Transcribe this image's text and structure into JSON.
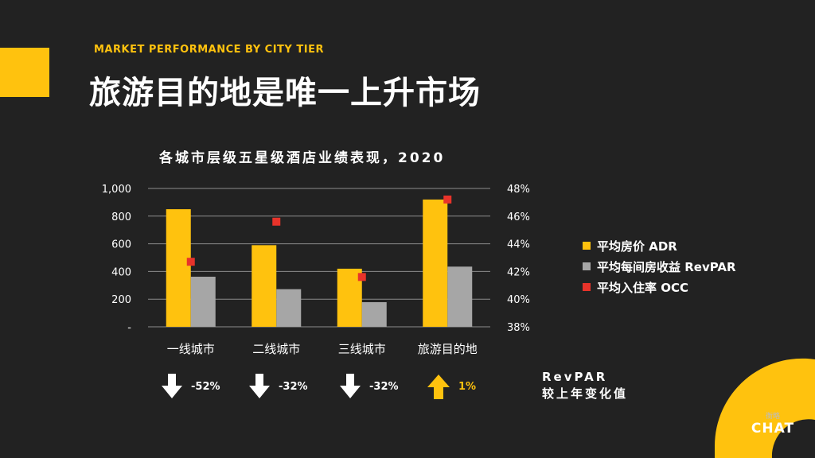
{
  "header": {
    "kicker": "MARKET PERFORMANCE BY CITY TIER",
    "title": "旅游目的地是唯一上升市场"
  },
  "chart_data": {
    "type": "bar",
    "title": "各城市层级五星级酒店业绩表现，2020",
    "categories": [
      "一线城市",
      "二线城市",
      "三线城市",
      "旅游目的地"
    ],
    "series": [
      {
        "name": "平均房价 ADR",
        "kind": "bar",
        "axis": "left",
        "color": "#FFC20E",
        "values": [
          850,
          590,
          420,
          920
        ]
      },
      {
        "name": "平均每间房收益 RevPAR",
        "kind": "bar",
        "axis": "left",
        "color": "#A6A6A6",
        "values": [
          362,
          272,
          178,
          435
        ]
      },
      {
        "name": "平均入住率 OCC",
        "kind": "marker",
        "axis": "right",
        "color": "#E8332A",
        "values": [
          42.7,
          45.6,
          41.6,
          47.2
        ]
      }
    ],
    "left_axis": {
      "min": 0,
      "max": 1000,
      "ticks": [
        "-",
        "200",
        "400",
        "600",
        "800",
        "1,000"
      ]
    },
    "right_axis": {
      "min": 38,
      "max": 48,
      "ticks": [
        "38%",
        "40%",
        "42%",
        "44%",
        "46%",
        "48%"
      ]
    },
    "grid": true,
    "legend_position": "right"
  },
  "revpar_change": {
    "items": [
      {
        "value": "-52%",
        "direction": "down",
        "color": "#ffffff"
      },
      {
        "value": "-32%",
        "direction": "down",
        "color": "#ffffff"
      },
      {
        "value": "-32%",
        "direction": "down",
        "color": "#ffffff"
      },
      {
        "value": "1%",
        "direction": "up",
        "color": "#FFC20E"
      }
    ],
    "note_line1": "RevPAR",
    "note_line2": "较上年变化值"
  },
  "logo": {
    "mark": "衡略",
    "text": "CHAT"
  }
}
